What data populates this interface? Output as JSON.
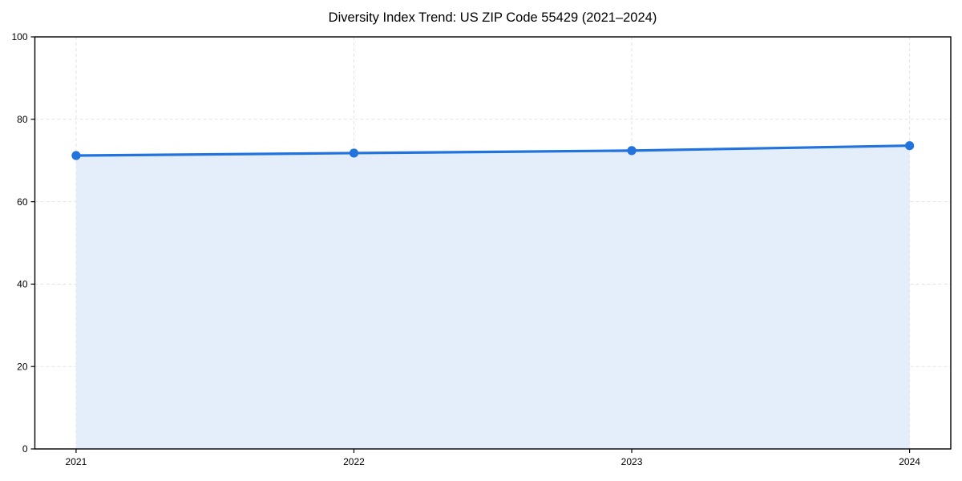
{
  "chart_data": {
    "type": "line",
    "title": "Diversity Index Trend: US ZIP Code 55429 (2021–2024)",
    "x_categories": [
      "2021",
      "2022",
      "2023",
      "2024"
    ],
    "series": [
      {
        "name": "Diversity Index",
        "values": [
          71.2,
          71.8,
          72.4,
          73.6
        ]
      }
    ],
    "ylim": [
      0,
      100
    ],
    "yticks": [
      0,
      20,
      40,
      60,
      80,
      100
    ],
    "grid": true,
    "grid_style": "dashed",
    "legend": "none",
    "area_fill": true,
    "colors": {
      "line": "#2273dd",
      "marker": "#2273dd",
      "area_fill": "#e4eefb",
      "grid": "#e3e3e3",
      "axis_frame": "#000000",
      "tick_text": "#000000",
      "background": "#ffffff"
    }
  }
}
